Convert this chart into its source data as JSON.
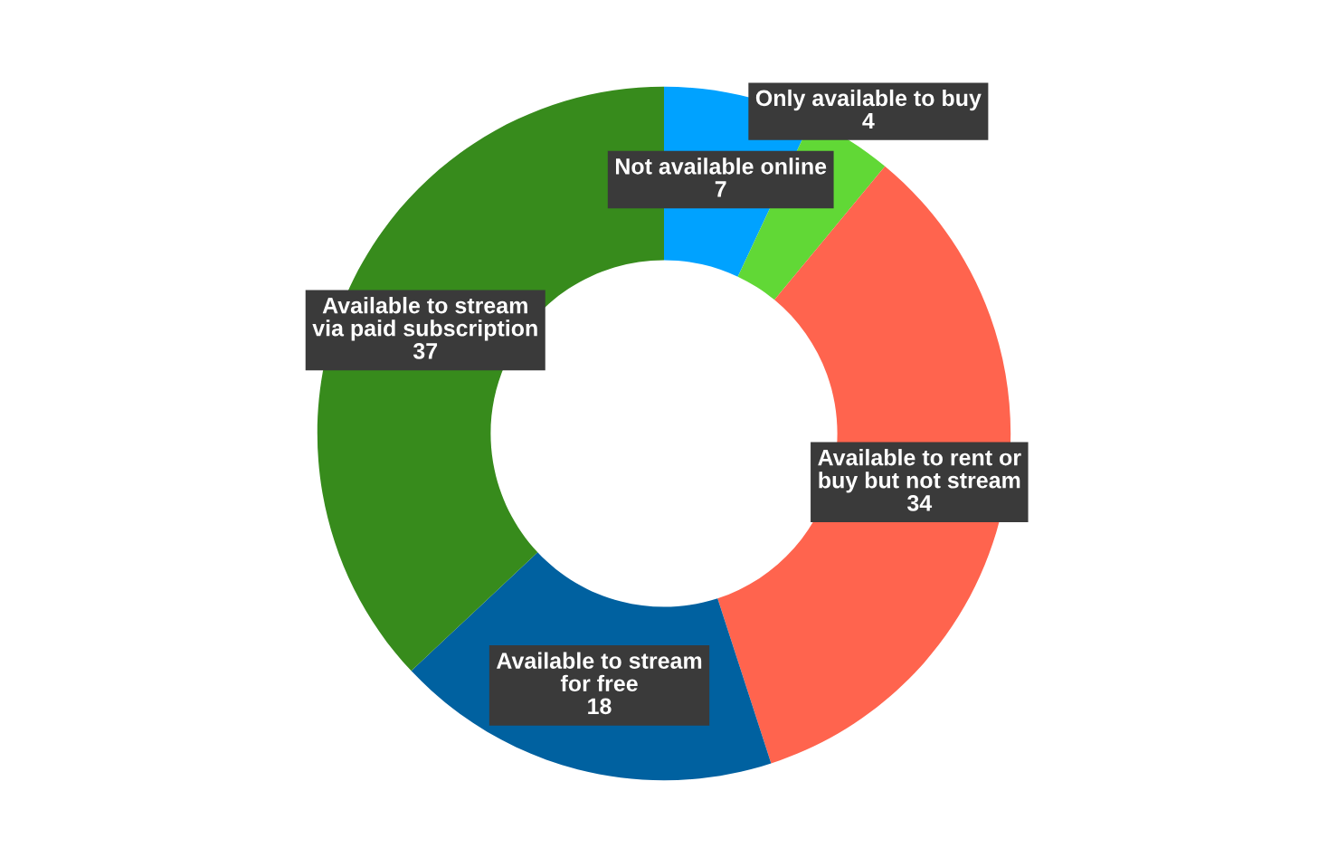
{
  "chart_data": {
    "type": "donut",
    "categories": [
      "Not available online",
      "Only available to buy",
      "Available to rent or buy but not stream",
      "Available to stream for free",
      "Available to stream via paid subscription"
    ],
    "values": [
      7,
      4,
      34,
      18,
      37
    ],
    "colors": [
      "#00a2ff",
      "#61d836",
      "#ff644e",
      "#0061a0",
      "#378b1c"
    ],
    "data_labels": true
  }
}
